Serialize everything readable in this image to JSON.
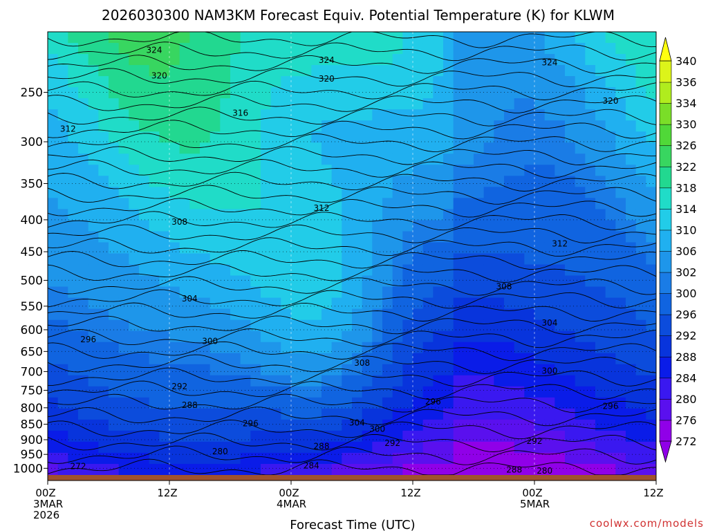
{
  "chart_data": {
    "type": "heatmap",
    "title": "2026030300 NAM3KM Forecast Equiv. Potential Temperature (K) for KLWM",
    "xlabel": "Forecast Time (UTC)",
    "ylabel": "",
    "credit": "coolwx.com/models",
    "x_ticks": [
      {
        "hour": 0,
        "lines": [
          "00Z",
          "3MAR",
          "2026"
        ]
      },
      {
        "hour": 12,
        "lines": [
          "12Z"
        ]
      },
      {
        "hour": 24,
        "lines": [
          "00Z",
          "4MAR"
        ]
      },
      {
        "hour": 36,
        "lines": [
          "12Z"
        ]
      },
      {
        "hour": 48,
        "lines": [
          "00Z",
          "5MAR"
        ]
      },
      {
        "hour": 60,
        "lines": [
          "12Z"
        ]
      }
    ],
    "xlim_hours": [
      0,
      60
    ],
    "y_scale": "log-pressure",
    "y_inverted": true,
    "ylim_hpa": [
      1025,
      200
    ],
    "y_ticks_hpa": [
      250,
      300,
      350,
      400,
      450,
      500,
      550,
      600,
      650,
      700,
      750,
      800,
      850,
      900,
      950,
      1000
    ],
    "colorbar": {
      "levels": [
        272,
        276,
        280,
        284,
        288,
        292,
        296,
        300,
        302,
        306,
        310,
        314,
        318,
        322,
        326,
        330,
        334,
        336,
        340
      ],
      "colors": [
        "#9000e8",
        "#5a10ee",
        "#3a18f0",
        "#0a1ce8",
        "#0834dc",
        "#0c4cdc",
        "#1064e0",
        "#1a7ce6",
        "#1e96ea",
        "#20b0f0",
        "#22cce8",
        "#20dcc8",
        "#22d890",
        "#38d660",
        "#50d838",
        "#7ade28",
        "#b0ec1e",
        "#dcf41a",
        "#ffff10"
      ],
      "extend": "both"
    },
    "contour_labels": [
      {
        "value": "324",
        "hour": 10.5,
        "hpa": 214
      },
      {
        "value": "324",
        "hour": 27.5,
        "hpa": 222
      },
      {
        "value": "324",
        "hour": 49.5,
        "hpa": 224
      },
      {
        "value": "320",
        "hour": 11.0,
        "hpa": 235
      },
      {
        "value": "320",
        "hour": 27.5,
        "hpa": 238
      },
      {
        "value": "320",
        "hour": 55.5,
        "hpa": 258
      },
      {
        "value": "316",
        "hour": 19.0,
        "hpa": 270
      },
      {
        "value": "312",
        "hour": 2.0,
        "hpa": 286
      },
      {
        "value": "312",
        "hour": 27.0,
        "hpa": 383
      },
      {
        "value": "308",
        "hour": 13.0,
        "hpa": 403
      },
      {
        "value": "312",
        "hour": 50.5,
        "hpa": 437
      },
      {
        "value": "308",
        "hour": 45.0,
        "hpa": 512
      },
      {
        "value": "304",
        "hour": 14.0,
        "hpa": 535
      },
      {
        "value": "304",
        "hour": 49.5,
        "hpa": 585
      },
      {
        "value": "296",
        "hour": 4.0,
        "hpa": 622
      },
      {
        "value": "300",
        "hour": 16.0,
        "hpa": 626
      },
      {
        "value": "308",
        "hour": 31.0,
        "hpa": 678
      },
      {
        "value": "300",
        "hour": 49.5,
        "hpa": 698
      },
      {
        "value": "292",
        "hour": 13.0,
        "hpa": 740
      },
      {
        "value": "288",
        "hour": 14.0,
        "hpa": 792
      },
      {
        "value": "296",
        "hour": 38.0,
        "hpa": 782
      },
      {
        "value": "296",
        "hour": 55.5,
        "hpa": 795
      },
      {
        "value": "296",
        "hour": 20.0,
        "hpa": 848
      },
      {
        "value": "304",
        "hour": 30.5,
        "hpa": 845
      },
      {
        "value": "300",
        "hour": 32.5,
        "hpa": 865
      },
      {
        "value": "292",
        "hour": 34.0,
        "hpa": 912
      },
      {
        "value": "292",
        "hour": 48.0,
        "hpa": 905
      },
      {
        "value": "288",
        "hour": 27.0,
        "hpa": 922
      },
      {
        "value": "280",
        "hour": 17.0,
        "hpa": 940
      },
      {
        "value": "284",
        "hour": 26.0,
        "hpa": 990
      },
      {
        "value": "272",
        "hour": 3.0,
        "hpa": 993
      },
      {
        "value": "288",
        "hour": 46.0,
        "hpa": 1005
      },
      {
        "value": "280",
        "hour": 49.0,
        "hpa": 1010
      }
    ]
  }
}
